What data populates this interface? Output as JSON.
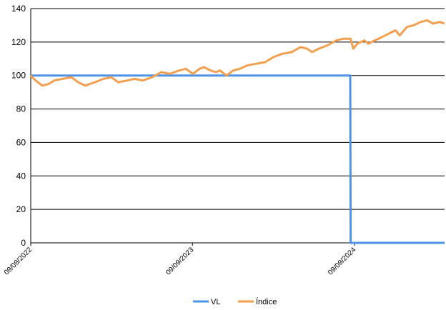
{
  "chart_data": {
    "type": "line",
    "title": "",
    "xlabel": "",
    "ylabel": "",
    "x_range": [
      "2022-09-09",
      "2025-03-31"
    ],
    "ylim": [
      0,
      140
    ],
    "yticks": [
      0,
      20,
      40,
      60,
      80,
      100,
      120,
      140
    ],
    "x_tick_labels": [
      {
        "date": "2022-09-09",
        "label": "09/09/2022"
      },
      {
        "date": "2023-09-09",
        "label": "09/09/2023"
      },
      {
        "date": "2024-09-09",
        "label": "09/09/2024"
      }
    ],
    "grid": "horizontal",
    "legend_position": "bottom",
    "series": [
      {
        "name": "VL",
        "color": "#4f93e6",
        "points": [
          [
            "2022-09-09",
            100
          ],
          [
            "2024-08-30",
            100
          ],
          [
            "2024-08-31",
            0
          ],
          [
            "2025-03-31",
            0
          ]
        ]
      },
      {
        "name": "Índice",
        "color": "#f0a050",
        "points": [
          [
            "2022-09-09",
            100
          ],
          [
            "2022-09-20",
            97
          ],
          [
            "2022-10-05",
            94
          ],
          [
            "2022-10-20",
            95
          ],
          [
            "2022-11-01",
            97
          ],
          [
            "2022-11-20",
            98
          ],
          [
            "2022-12-10",
            99
          ],
          [
            "2022-12-25",
            96
          ],
          [
            "2023-01-10",
            94
          ],
          [
            "2023-02-01",
            96
          ],
          [
            "2023-02-20",
            98
          ],
          [
            "2023-03-10",
            99
          ],
          [
            "2023-03-25",
            96
          ],
          [
            "2023-04-15",
            97
          ],
          [
            "2023-05-01",
            98
          ],
          [
            "2023-05-20",
            97
          ],
          [
            "2023-06-10",
            99
          ],
          [
            "2023-07-01",
            102
          ],
          [
            "2023-07-20",
            101
          ],
          [
            "2023-08-10",
            103
          ],
          [
            "2023-08-25",
            104
          ],
          [
            "2023-09-10",
            101
          ],
          [
            "2023-09-25",
            104
          ],
          [
            "2023-10-05",
            105
          ],
          [
            "2023-10-20",
            103
          ],
          [
            "2023-11-01",
            102
          ],
          [
            "2023-11-10",
            103
          ],
          [
            "2023-11-25",
            100
          ],
          [
            "2023-12-10",
            103
          ],
          [
            "2023-12-25",
            104
          ],
          [
            "2024-01-10",
            106
          ],
          [
            "2024-01-30",
            107
          ],
          [
            "2024-02-20",
            108
          ],
          [
            "2024-03-10",
            111
          ],
          [
            "2024-03-30",
            113
          ],
          [
            "2024-04-20",
            114
          ],
          [
            "2024-05-10",
            117
          ],
          [
            "2024-05-25",
            116
          ],
          [
            "2024-06-05",
            114
          ],
          [
            "2024-06-20",
            116
          ],
          [
            "2024-07-10",
            118
          ],
          [
            "2024-07-30",
            121
          ],
          [
            "2024-08-15",
            122
          ],
          [
            "2024-08-31",
            122
          ],
          [
            "2024-09-06",
            116
          ],
          [
            "2024-09-15",
            119
          ],
          [
            "2024-10-01",
            121
          ],
          [
            "2024-10-10",
            119
          ],
          [
            "2024-10-25",
            121
          ],
          [
            "2024-11-10",
            123
          ],
          [
            "2024-11-25",
            125
          ],
          [
            "2024-12-10",
            127
          ],
          [
            "2024-12-20",
            124
          ],
          [
            "2025-01-05",
            129
          ],
          [
            "2025-01-20",
            130
          ],
          [
            "2025-02-05",
            132
          ],
          [
            "2025-02-20",
            133
          ],
          [
            "2025-03-05",
            131
          ],
          [
            "2025-03-20",
            132
          ],
          [
            "2025-03-31",
            131
          ]
        ]
      }
    ]
  }
}
